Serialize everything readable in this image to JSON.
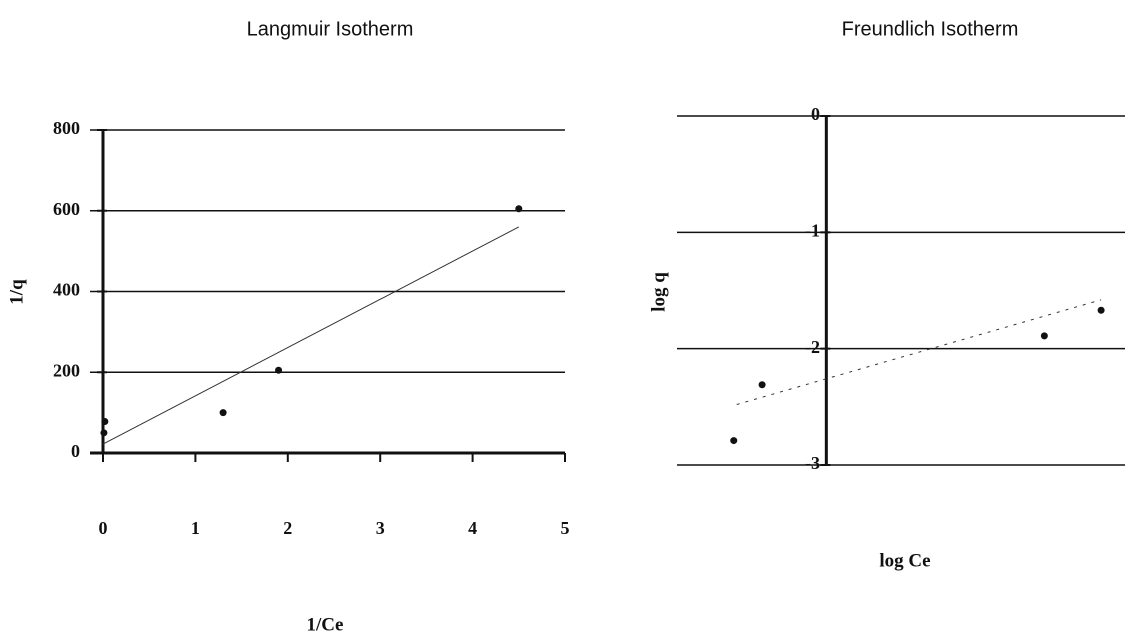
{
  "chart_data": [
    {
      "type": "scatter",
      "title": "Langmuir Isotherm",
      "x_label": "1/Ce",
      "y_label": "1/q",
      "x": [
        0.01,
        0.02,
        1.3,
        1.9,
        4.5
      ],
      "values": [
        50,
        78,
        100,
        205,
        605
      ],
      "color": "#111111",
      "trendline": {
        "x": [
          0,
          4.5
        ],
        "values": [
          22,
          560
        ]
      },
      "xlim": [
        0,
        5
      ],
      "xticks": [
        0,
        1,
        2,
        3,
        4,
        5
      ],
      "ylim": [
        0,
        800
      ],
      "yticks": [
        0,
        200,
        400,
        600,
        800
      ],
      "grid": true
    },
    {
      "type": "scatter",
      "title": "Freundlich Isotherm",
      "x_label": "log Ce",
      "y_label": "log q",
      "x": [
        -0.62,
        -0.43,
        1.46,
        1.84
      ],
      "values": [
        -2.79,
        -2.31,
        -1.89,
        -1.67
      ],
      "color": "#111111",
      "trendline": {
        "x": [
          -0.6,
          1.84
        ],
        "values": [
          -2.48,
          -1.58
        ]
      },
      "xlim": [
        -1,
        2
      ],
      "ylim": [
        -3,
        0
      ],
      "yticks": [
        0,
        -1,
        -2,
        -3
      ],
      "grid": true
    }
  ]
}
